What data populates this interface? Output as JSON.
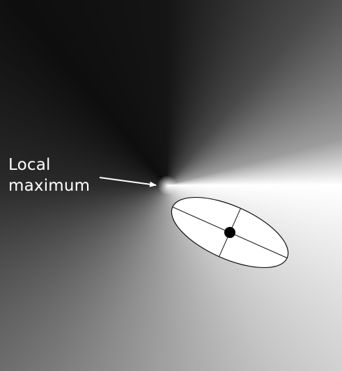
{
  "annotation": {
    "line1": "Local",
    "line2": "maximum"
  },
  "colors": {
    "label": "#ffffff",
    "arrow": "#ffffff",
    "ellipse_fill": "#ffffff",
    "ellipse_stroke": "#111111",
    "center_dot": "#000000"
  }
}
